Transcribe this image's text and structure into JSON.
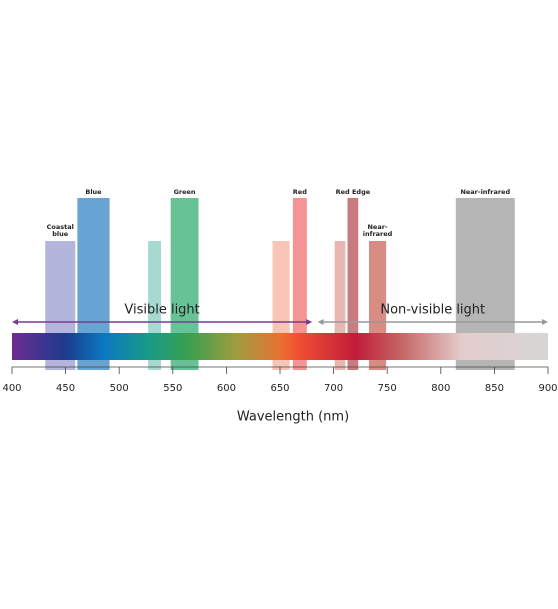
{
  "chart_data": {
    "type": "spectrum",
    "xlabel": "Wavelength (nm)",
    "xlim": [
      400,
      900
    ],
    "xticks": [
      400,
      450,
      500,
      550,
      600,
      650,
      700,
      750,
      800,
      850,
      900
    ],
    "regions": [
      {
        "name": "Visible light",
        "start": 400,
        "end": 680,
        "color": "#7a3a90"
      },
      {
        "name": "Non-visible light",
        "start": 685,
        "end": 900,
        "color": "#999999"
      }
    ],
    "bands": [
      {
        "name": "Coastal blue",
        "start": 431,
        "end": 459,
        "color": "#b3b5dc",
        "tier": "low"
      },
      {
        "name": "Blue",
        "start": 461,
        "end": 491,
        "color": "#67a3d3",
        "tier": "high"
      },
      {
        "name": null,
        "start": 527,
        "end": 539,
        "color": "#a6d9d1",
        "tier": "low"
      },
      {
        "name": "Green",
        "start": 548,
        "end": 574,
        "color": "#67c396",
        "tier": "high"
      },
      {
        "name": null,
        "start": 643,
        "end": 659,
        "color": "#f7c5b5",
        "tier": "low"
      },
      {
        "name": "Red",
        "start": 662,
        "end": 675,
        "color": "#f59495",
        "tier": "high"
      },
      {
        "name": null,
        "start": 701,
        "end": 711,
        "color": "#e9b6b2",
        "tier": "low"
      },
      {
        "name": "Red Edge",
        "start": 713,
        "end": 723,
        "color": "#c97b80",
        "tier": "high"
      },
      {
        "name": "Near-infrared",
        "start": 733,
        "end": 749,
        "color": "#d98c83",
        "tier": "low"
      },
      {
        "name": "Near-infrared",
        "start": 814,
        "end": 869,
        "color": "#b5b5b5",
        "tier": "high"
      }
    ]
  }
}
